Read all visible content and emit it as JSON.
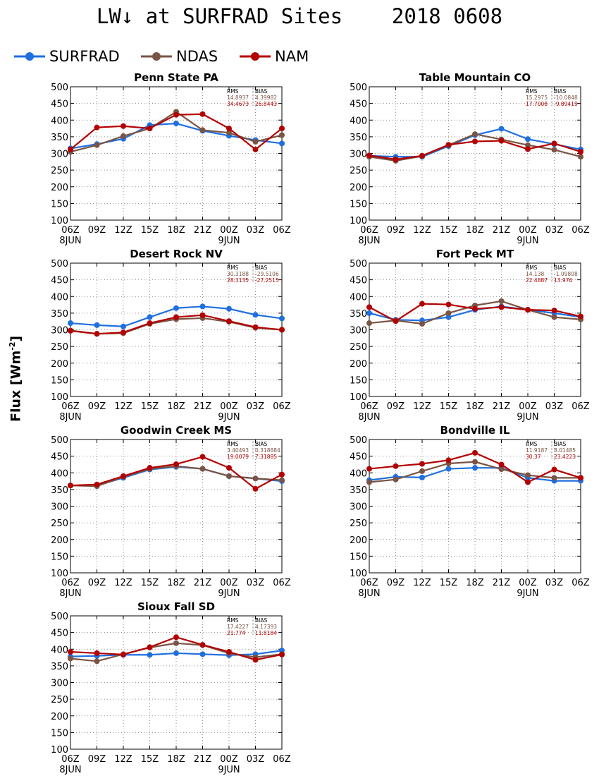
{
  "title": "LW↓ at SURFRAD Sites    2018 0608",
  "ylabel_main": "Flux [Wm",
  "ylabel_exp": "-2",
  "ylabel_close": "]",
  "colors": {
    "SURFRAD": "#1f6fe0",
    "NDAS": "#7a5444",
    "NAM": "#b30000"
  },
  "legend": [
    {
      "name": "SURFRAD",
      "color": "#1f6fe0"
    },
    {
      "name": "NDAS",
      "color": "#7a5444"
    },
    {
      "name": "NAM",
      "color": "#b30000"
    }
  ],
  "chart_data": [
    {
      "type": "line",
      "title": "Penn State PA",
      "x": [
        "06Z",
        "09Z",
        "12Z",
        "15Z",
        "18Z",
        "21Z",
        "00Z",
        "03Z",
        "06Z"
      ],
      "date_labels": [
        "8JUN",
        "9JUN"
      ],
      "ylim": [
        100,
        500
      ],
      "yticks": [
        100,
        150,
        200,
        250,
        300,
        350,
        400,
        450,
        500
      ],
      "grid": true,
      "stats": {
        "header": [
          "RMS",
          "BIAS"
        ],
        "NDAS": [
          "14.8937",
          "4.39982"
        ],
        "NAM": [
          "34.4673",
          "26.8443"
        ]
      },
      "series": [
        {
          "name": "SURFRAD",
          "values": [
            315,
            328,
            344,
            385,
            390,
            368,
            353,
            340,
            330
          ]
        },
        {
          "name": "NDAS",
          "values": [
            305,
            325,
            352,
            375,
            425,
            370,
            362,
            335,
            355
          ]
        },
        {
          "name": "NAM",
          "values": [
            312,
            378,
            382,
            375,
            416,
            418,
            375,
            312,
            375
          ]
        }
      ]
    },
    {
      "type": "line",
      "title": "Table Mountain CO",
      "x": [
        "06Z",
        "09Z",
        "12Z",
        "15Z",
        "18Z",
        "21Z",
        "00Z",
        "03Z",
        "06Z"
      ],
      "date_labels": [
        "8JUN",
        "9JUN"
      ],
      "ylim": [
        100,
        500
      ],
      "yticks": [
        100,
        150,
        200,
        250,
        300,
        350,
        400,
        450,
        500
      ],
      "grid": true,
      "stats": {
        "header": [
          "RMS",
          "BIAS"
        ],
        "NDAS": [
          "15.2975",
          "-10.0848"
        ],
        "NAM": [
          "17.7008",
          "-9.89419"
        ]
      },
      "series": [
        {
          "name": "SURFRAD",
          "values": [
            293,
            290,
            290,
            322,
            355,
            374,
            343,
            328,
            312
          ]
        },
        {
          "name": "NDAS",
          "values": [
            290,
            278,
            292,
            325,
            358,
            342,
            325,
            311,
            290
          ]
        },
        {
          "name": "NAM",
          "values": [
            294,
            282,
            293,
            326,
            336,
            338,
            313,
            330,
            305
          ]
        }
      ]
    },
    {
      "type": "line",
      "title": "Desert Rock NV",
      "x": [
        "06Z",
        "09Z",
        "12Z",
        "15Z",
        "18Z",
        "21Z",
        "00Z",
        "03Z",
        "06Z"
      ],
      "date_labels": [
        "8JUN",
        "9JUN"
      ],
      "ylim": [
        100,
        500
      ],
      "yticks": [
        100,
        150,
        200,
        250,
        300,
        350,
        400,
        450,
        500
      ],
      "grid": true,
      "stats": {
        "header": [
          "RMS",
          "BIAS"
        ],
        "NDAS": [
          "30.3188",
          "-29.5106"
        ],
        "NAM": [
          "28.3135",
          "-27.2515"
        ]
      },
      "series": [
        {
          "name": "SURFRAD",
          "values": [
            320,
            314,
            310,
            338,
            365,
            370,
            363,
            345,
            334
          ]
        },
        {
          "name": "NDAS",
          "values": [
            298,
            288,
            290,
            318,
            332,
            335,
            324,
            306,
            300
          ]
        },
        {
          "name": "NAM",
          "values": [
            297,
            288,
            292,
            320,
            338,
            344,
            326,
            308,
            300
          ]
        }
      ]
    },
    {
      "type": "line",
      "title": "Fort Peck MT",
      "x": [
        "06Z",
        "09Z",
        "12Z",
        "15Z",
        "18Z",
        "21Z",
        "00Z",
        "03Z",
        "06Z"
      ],
      "date_labels": [
        "8JUN",
        "9JUN"
      ],
      "ylim": [
        100,
        500
      ],
      "yticks": [
        100,
        150,
        200,
        250,
        300,
        350,
        400,
        450,
        500
      ],
      "grid": true,
      "stats": {
        "header": [
          "RMS",
          "BIAS"
        ],
        "NDAS": [
          "14.138",
          "-1.09808"
        ],
        "NAM": [
          "22.4887",
          "13.976"
        ]
      },
      "series": [
        {
          "name": "SURFRAD",
          "values": [
            350,
            330,
            328,
            338,
            360,
            370,
            360,
            350,
            338
          ]
        },
        {
          "name": "NDAS",
          "values": [
            320,
            328,
            318,
            350,
            373,
            386,
            360,
            338,
            331
          ]
        },
        {
          "name": "NAM",
          "values": [
            368,
            326,
            378,
            376,
            363,
            368,
            360,
            358,
            340
          ]
        }
      ]
    },
    {
      "type": "line",
      "title": "Goodwin Creek MS",
      "x": [
        "06Z",
        "09Z",
        "12Z",
        "15Z",
        "18Z",
        "21Z",
        "00Z",
        "03Z",
        "06Z"
      ],
      "date_labels": [
        "8JUN",
        "9JUN"
      ],
      "ylim": [
        100,
        500
      ],
      "yticks": [
        100,
        150,
        200,
        250,
        300,
        350,
        400,
        450,
        500
      ],
      "grid": true,
      "stats": {
        "header": [
          "RMS",
          "BIAS"
        ],
        "NDAS": [
          "3.40493",
          "0.318884"
        ],
        "NAM": [
          "19.0079",
          "7.31885"
        ]
      },
      "series": [
        {
          "name": "SURFRAD",
          "values": [
            362,
            362,
            385,
            410,
            418,
            412,
            390,
            383,
            375
          ]
        },
        {
          "name": "NDAS",
          "values": [
            362,
            360,
            388,
            412,
            420,
            412,
            390,
            383,
            378
          ]
        },
        {
          "name": "NAM",
          "values": [
            362,
            365,
            390,
            415,
            426,
            448,
            415,
            352,
            395
          ]
        }
      ]
    },
    {
      "type": "line",
      "title": "Bondville IL",
      "x": [
        "06Z",
        "09Z",
        "12Z",
        "15Z",
        "18Z",
        "21Z",
        "00Z",
        "03Z",
        "06Z"
      ],
      "date_labels": [
        "8JUN",
        "9JUN"
      ],
      "ylim": [
        100,
        500
      ],
      "yticks": [
        100,
        150,
        200,
        250,
        300,
        350,
        400,
        450,
        500
      ],
      "grid": true,
      "stats": {
        "header": [
          "RMS",
          "BIAS"
        ],
        "NDAS": [
          "11.9187",
          "8.01485"
        ],
        "NAM": [
          "30.37",
          "23.4223"
        ]
      },
      "series": [
        {
          "name": "SURFRAD",
          "values": [
            378,
            388,
            386,
            412,
            415,
            415,
            385,
            376,
            376
          ]
        },
        {
          "name": "NDAS",
          "values": [
            372,
            380,
            405,
            428,
            433,
            411,
            393,
            385,
            385
          ]
        },
        {
          "name": "NAM",
          "values": [
            412,
            420,
            427,
            438,
            460,
            425,
            372,
            410,
            385
          ]
        }
      ]
    },
    {
      "type": "line",
      "title": "Sioux Fall SD",
      "x": [
        "06Z",
        "09Z",
        "12Z",
        "15Z",
        "18Z",
        "21Z",
        "00Z",
        "03Z",
        "06Z"
      ],
      "date_labels": [
        "8JUN",
        "9JUN"
      ],
      "ylim": [
        100,
        500
      ],
      "yticks": [
        100,
        150,
        200,
        250,
        300,
        350,
        400,
        450,
        500
      ],
      "grid": true,
      "stats": {
        "header": [
          "RMS",
          "BIAS"
        ],
        "NDAS": [
          "17.4227",
          "4.17393"
        ],
        "NAM": [
          "21.774",
          "11.8184"
        ]
      },
      "series": [
        {
          "name": "SURFRAD",
          "values": [
            378,
            380,
            383,
            383,
            388,
            385,
            382,
            385,
            396
          ]
        },
        {
          "name": "NDAS",
          "values": [
            372,
            364,
            385,
            405,
            418,
            412,
            388,
            376,
            385
          ]
        },
        {
          "name": "NAM",
          "values": [
            392,
            388,
            384,
            406,
            436,
            413,
            392,
            368,
            384
          ]
        }
      ]
    }
  ]
}
